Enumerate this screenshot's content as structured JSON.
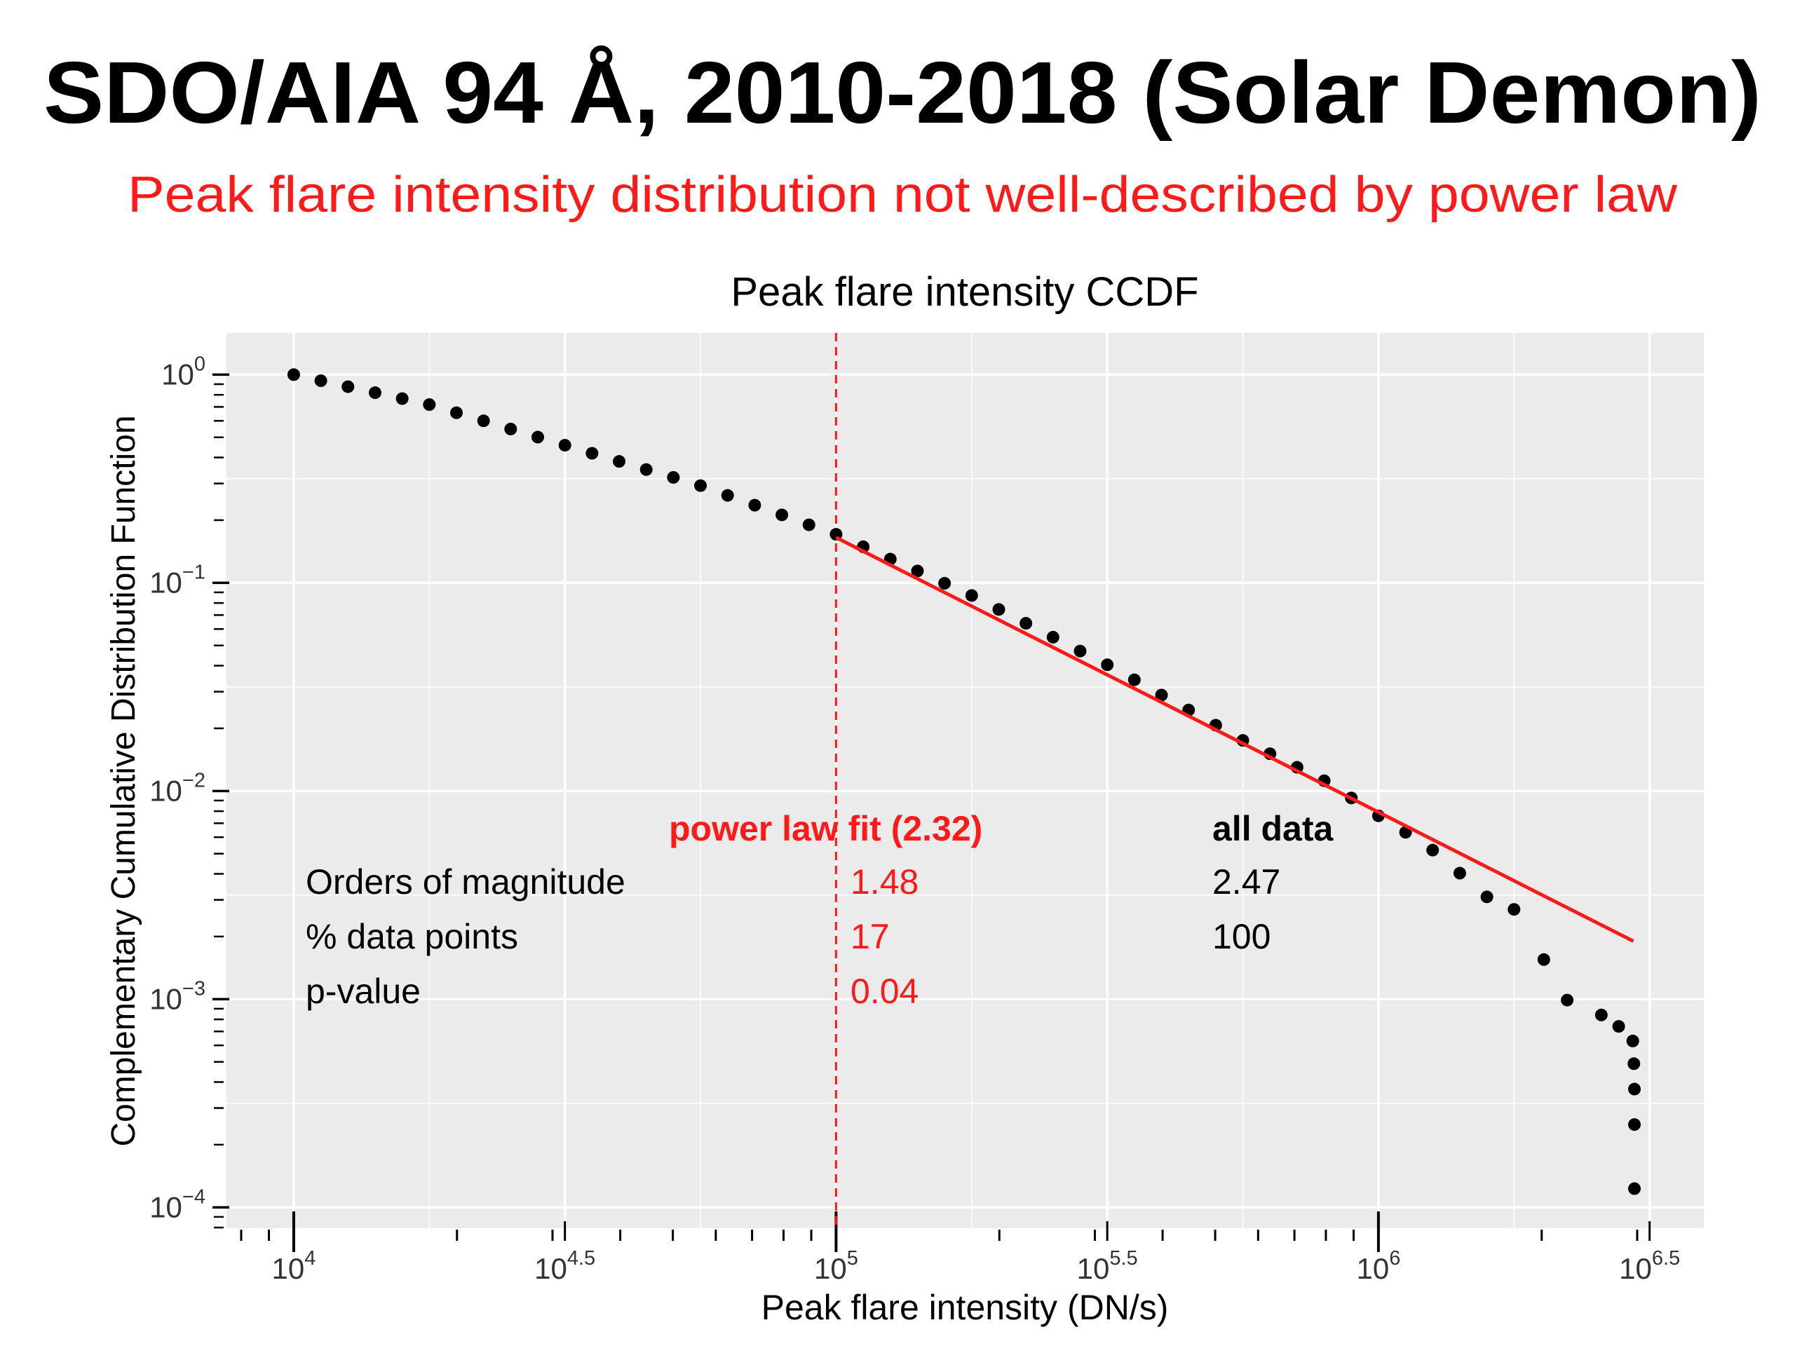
{
  "chart_data": {
    "type": "scatter",
    "title": "SDO/AIA 94 Å, 2010-2018 (Solar Demon)",
    "subtitle": "Peak flare intensity distribution not well-described by power law",
    "plot_title": "Peak flare intensity CCDF",
    "x_label": "Peak flare intensity (DN/s)",
    "y_label": "Complementary Cumulative Distribution Function",
    "x_log": true,
    "y_log": true,
    "grid": true,
    "minor_ticks": true,
    "color": "#000000",
    "xlim": [
      7516,
      3981072
    ],
    "ylim": [
      7.94e-05,
      1.585
    ],
    "xticks": [
      {
        "value": 10000,
        "label": "10",
        "sup": "4"
      },
      {
        "value": 31622.78,
        "label": "10",
        "sup": "4.5"
      },
      {
        "value": 100000,
        "label": "10",
        "sup": "5"
      },
      {
        "value": 316227.77,
        "label": "10",
        "sup": "5.5"
      },
      {
        "value": 1000000,
        "label": "10",
        "sup": "6"
      },
      {
        "value": 3162277.66,
        "label": "10",
        "sup": "6.5"
      }
    ],
    "yticks": [
      {
        "value": 1,
        "label": "10",
        "sup": "0"
      },
      {
        "value": 0.1,
        "label": "10",
        "sup": "−1"
      },
      {
        "value": 0.01,
        "label": "10",
        "sup": "−2"
      },
      {
        "value": 0.001,
        "label": "10",
        "sup": "−3"
      },
      {
        "value": 0.0001,
        "label": "10",
        "sup": "−4"
      }
    ],
    "x": [
      10000,
      11220,
      12589,
      14125,
      15849,
      17783,
      19953,
      22387,
      25119,
      28184,
      31623,
      35481,
      39811,
      44668,
      50119,
      56234,
      63096,
      70795,
      79433,
      89125,
      100000,
      112202,
      125893,
      141254,
      158489,
      177828,
      199526,
      223872,
      251189,
      281838,
      316228,
      354813,
      398107,
      446684,
      501187,
      562341,
      630957,
      707946,
      794328,
      891251,
      1000000,
      1122018,
      1258925,
      1412538,
      1584893,
      1778279,
      2018366,
      2228435,
      2576321,
      2773297,
      2944386,
      2958012,
      2964831,
      2964831,
      2964831
    ],
    "values": [
      1,
      0.935,
      0.875,
      0.819,
      0.767,
      0.718,
      0.656,
      0.6,
      0.548,
      0.501,
      0.458,
      0.419,
      0.383,
      0.35,
      0.321,
      0.293,
      0.263,
      0.236,
      0.212,
      0.19,
      0.171,
      0.149,
      0.13,
      0.114,
      0.0995,
      0.0869,
      0.0745,
      0.0639,
      0.0548,
      0.047,
      0.0404,
      0.0342,
      0.0289,
      0.0245,
      0.0207,
      0.0175,
      0.0151,
      0.013,
      0.0112,
      0.00926,
      0.0076,
      0.00633,
      0.0052,
      0.00403,
      0.0031,
      0.0027,
      0.00155,
      0.00099,
      0.00084,
      0.00074,
      0.00063,
      0.00049,
      0.00037,
      0.00025,
      0.000123
    ],
    "fit": {
      "color": "#ff1a1a",
      "x": [
        100000,
        2951209
      ],
      "values": [
        0.165,
        0.0019
      ]
    },
    "cutoff": {
      "x": 100000,
      "color": "#ff1a1a",
      "dashed": true
    },
    "annotation_table": {
      "color": "#ff1a1a",
      "header": [
        "power law fit (2.32)",
        "all data"
      ],
      "rows": [
        [
          "Orders of magnitude",
          "1.48",
          "2.47"
        ],
        [
          "% data points",
          "17",
          "100"
        ],
        [
          "p-value",
          "0.04"
        ]
      ]
    }
  }
}
